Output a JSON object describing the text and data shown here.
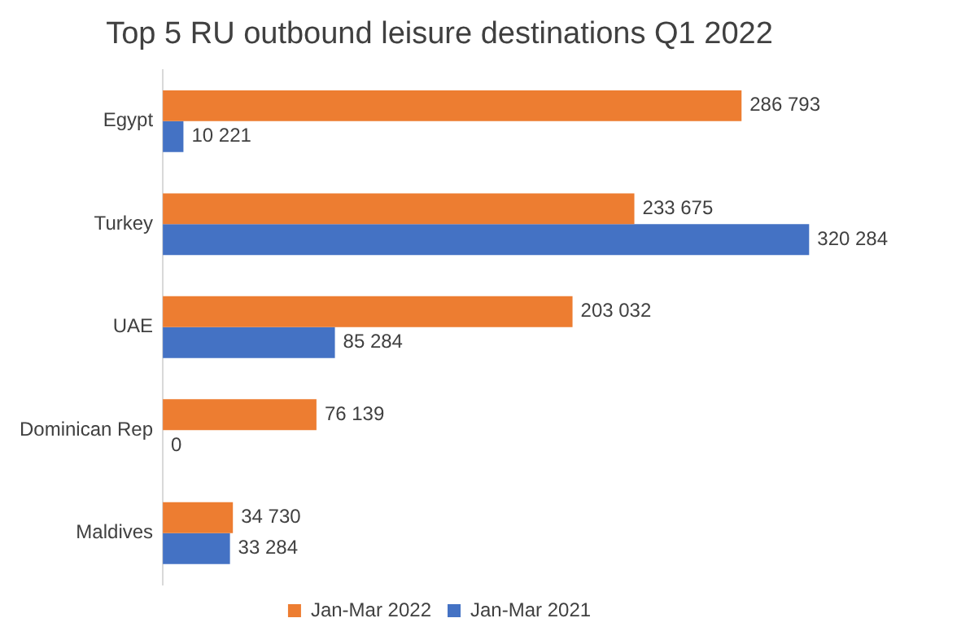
{
  "chart_data": {
    "type": "bar",
    "orientation": "horizontal",
    "title": "Top 5 RU outbound leisure destinations Q1 2022",
    "categories": [
      "Egypt",
      "Turkey",
      "UAE",
      "Dominican Rep",
      "Maldives"
    ],
    "series": [
      {
        "name": "Jan-Mar 2022",
        "color": "#ed7d31",
        "values": [
          286793,
          233675,
          203032,
          76139,
          34730
        ],
        "value_labels": [
          "286 793",
          "233 675",
          "203 032",
          "76 139",
          "34 730"
        ]
      },
      {
        "name": "Jan-Mar 2021",
        "color": "#4472c4",
        "values": [
          10221,
          320284,
          85284,
          0,
          33284
        ],
        "value_labels": [
          "10 221",
          "320 284",
          "85 284",
          "0",
          "33 284"
        ]
      }
    ],
    "legend": "bottom",
    "tick_labels": "y"
  }
}
